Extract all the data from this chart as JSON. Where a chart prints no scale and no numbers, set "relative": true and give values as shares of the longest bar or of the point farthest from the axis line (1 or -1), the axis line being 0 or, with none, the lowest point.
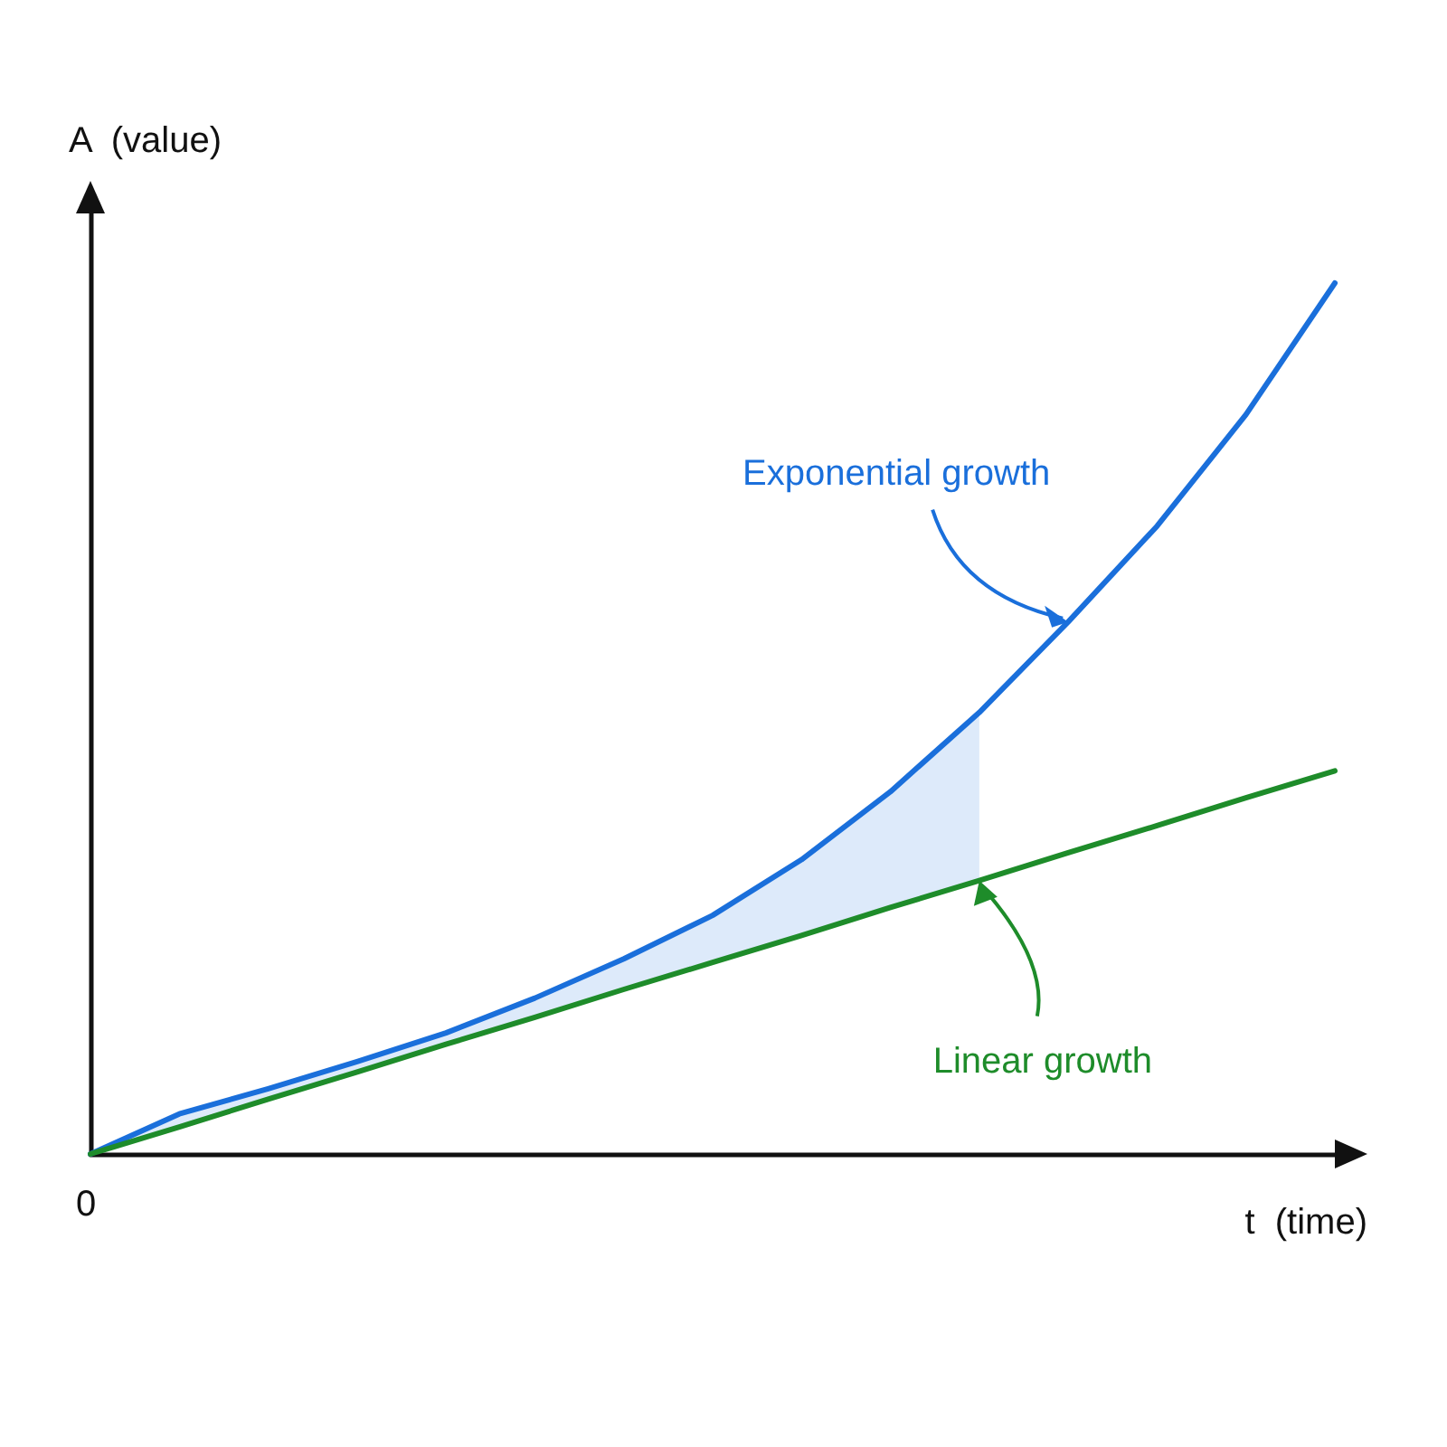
{
  "chart_data": {
    "type": "line",
    "relative": true,
    "xlabel": "t  (time)",
    "ylabel": "A  (value)",
    "categories": [
      null,
      null,
      null,
      null,
      null,
      null,
      null,
      null,
      null,
      null,
      null,
      null,
      null,
      null,
      null
    ],
    "series": [
      {
        "color": "#1a6fdb",
        "values": [
          0,
          0.046,
          0.075,
          0.106,
          0.139,
          0.179,
          0.224,
          0.274,
          0.338,
          0.416,
          0.507,
          0.611,
          0.721,
          0.849,
          1
        ],
        "lower": [
          0,
          0.031,
          0.063,
          0.094,
          0.126,
          0.157,
          0.189,
          0.22,
          0.251,
          0.283,
          0.314,
          null,
          null,
          null,
          null
        ],
        "upper": [
          0,
          0.046,
          0.075,
          0.106,
          0.139,
          0.179,
          0.224,
          0.274,
          0.338,
          0.416,
          0.507,
          null,
          null,
          null,
          null
        ]
      },
      {
        "color": "#1e8c2a",
        "values": [
          0,
          0.031,
          0.063,
          0.094,
          0.126,
          0.157,
          0.189,
          0.22,
          0.251,
          0.283,
          0.314,
          0.346,
          0.377,
          0.409,
          0.44
        ]
      }
    ],
    "annotations": [
      "0",
      "Exponential growth",
      "Linear growth"
    ],
    "grid": false,
    "marker": "none",
    "line_style": "solid"
  }
}
